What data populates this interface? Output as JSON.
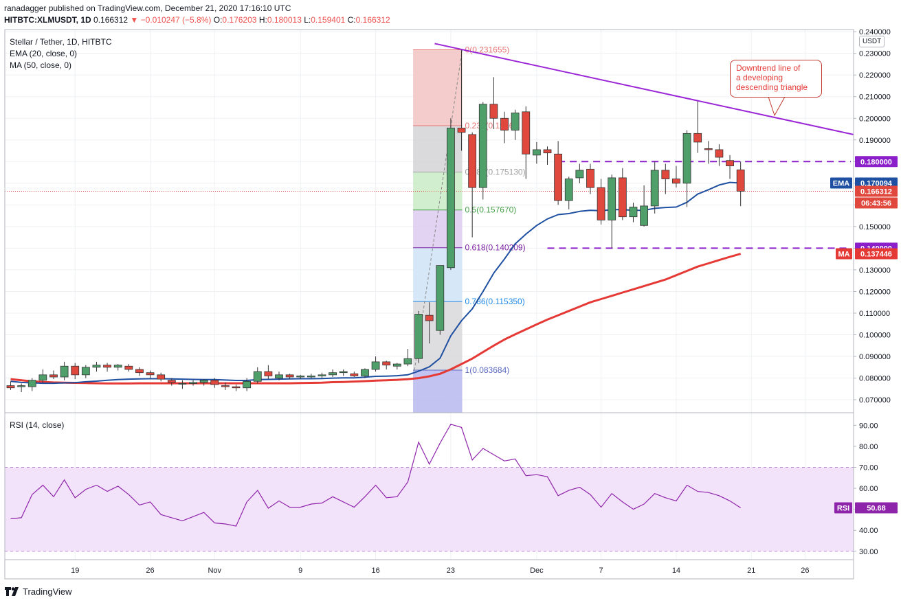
{
  "header": {
    "line1": "ranadagger published on TradingView.com, December 21, 2020 17:16:10 UTC",
    "symbol": "HITBTC:XLMUSDT, 1D",
    "last": "0.166312",
    "change": "▼ −0.010247 (−5.8%)",
    "o_label": "O:",
    "o_value": "0.176203",
    "h_label": "H:",
    "h_value": "0.180013",
    "l_label": "L:",
    "l_value": "0.159401",
    "c_label": "C:",
    "c_value": "0.166312"
  },
  "legend": {
    "title": "Stellar / Tether, 1D, HITBTC",
    "ema": "EMA (20, close, 0)",
    "ma": "MA (50, close, 0)",
    "rsi": "RSI (14, close)"
  },
  "annotation": {
    "line1": "Downtrend line of",
    "line2": "a developing",
    "line3": "descending triangle"
  },
  "currency_badge": "USDT",
  "footer": {
    "brand": "TradingView"
  },
  "colors": {
    "up": "#4f9f6b",
    "down": "#e0483e",
    "ema": "#1e4fa0",
    "ma": "#e53935",
    "rsi": "#8e24aa",
    "trend": "#9c27d6",
    "level": "#8b1fc9"
  },
  "chart_data": {
    "type": "candlestick",
    "price_axis": {
      "ylim": [
        0.064,
        0.241
      ],
      "ticks": [
        "0.240000",
        "0.230000",
        "0.220000",
        "0.210000",
        "0.200000",
        "0.190000",
        "0.180000",
        "0.170000",
        "0.160000",
        "0.150000",
        "0.140000",
        "0.130000",
        "0.120000",
        "0.110000",
        "0.100000",
        "0.090000",
        "0.080000",
        "0.070000"
      ]
    },
    "x_axis": {
      "labels": [
        {
          "text": "19",
          "index": 6
        },
        {
          "text": "26",
          "index": 13
        },
        {
          "text": "Nov",
          "index": 19
        },
        {
          "text": "9",
          "index": 27
        },
        {
          "text": "16",
          "index": 34
        },
        {
          "text": "23",
          "index": 41
        },
        {
          "text": "Dec",
          "index": 49
        },
        {
          "text": "7",
          "index": 55
        },
        {
          "text": "14",
          "index": 62
        },
        {
          "text": "21",
          "index": 69
        },
        {
          "text": "26",
          "index": 74
        }
      ]
    },
    "candles": [
      {
        "o": 0.0765,
        "h": 0.0785,
        "l": 0.0745,
        "c": 0.0755
      },
      {
        "o": 0.076,
        "h": 0.0775,
        "l": 0.0735,
        "c": 0.0765
      },
      {
        "o": 0.076,
        "h": 0.08,
        "l": 0.074,
        "c": 0.079
      },
      {
        "o": 0.079,
        "h": 0.084,
        "l": 0.078,
        "c": 0.0815
      },
      {
        "o": 0.0815,
        "h": 0.0835,
        "l": 0.0795,
        "c": 0.0805
      },
      {
        "o": 0.0805,
        "h": 0.0875,
        "l": 0.079,
        "c": 0.0855
      },
      {
        "o": 0.0855,
        "h": 0.087,
        "l": 0.0795,
        "c": 0.0815
      },
      {
        "o": 0.0815,
        "h": 0.086,
        "l": 0.08,
        "c": 0.085
      },
      {
        "o": 0.085,
        "h": 0.0875,
        "l": 0.083,
        "c": 0.086
      },
      {
        "o": 0.086,
        "h": 0.087,
        "l": 0.083,
        "c": 0.085
      },
      {
        "o": 0.085,
        "h": 0.0865,
        "l": 0.0835,
        "c": 0.086
      },
      {
        "o": 0.0855,
        "h": 0.0865,
        "l": 0.083,
        "c": 0.084
      },
      {
        "o": 0.084,
        "h": 0.085,
        "l": 0.081,
        "c": 0.0825
      },
      {
        "o": 0.0825,
        "h": 0.0835,
        "l": 0.08,
        "c": 0.0815
      },
      {
        "o": 0.0815,
        "h": 0.0825,
        "l": 0.0785,
        "c": 0.0795
      },
      {
        "o": 0.079,
        "h": 0.08,
        "l": 0.0765,
        "c": 0.078
      },
      {
        "o": 0.0775,
        "h": 0.079,
        "l": 0.075,
        "c": 0.0775
      },
      {
        "o": 0.0775,
        "h": 0.079,
        "l": 0.0765,
        "c": 0.078
      },
      {
        "o": 0.078,
        "h": 0.0795,
        "l": 0.0765,
        "c": 0.079
      },
      {
        "o": 0.079,
        "h": 0.08,
        "l": 0.0755,
        "c": 0.077
      },
      {
        "o": 0.0765,
        "h": 0.078,
        "l": 0.0745,
        "c": 0.076
      },
      {
        "o": 0.076,
        "h": 0.077,
        "l": 0.074,
        "c": 0.0755
      },
      {
        "o": 0.0755,
        "h": 0.08,
        "l": 0.074,
        "c": 0.0785
      },
      {
        "o": 0.0785,
        "h": 0.085,
        "l": 0.0775,
        "c": 0.083
      },
      {
        "o": 0.083,
        "h": 0.086,
        "l": 0.0795,
        "c": 0.081
      },
      {
        "o": 0.08,
        "h": 0.083,
        "l": 0.079,
        "c": 0.0815
      },
      {
        "o": 0.0815,
        "h": 0.082,
        "l": 0.0795,
        "c": 0.0805
      },
      {
        "o": 0.0805,
        "h": 0.0815,
        "l": 0.0795,
        "c": 0.081
      },
      {
        "o": 0.0805,
        "h": 0.082,
        "l": 0.08,
        "c": 0.081
      },
      {
        "o": 0.081,
        "h": 0.0825,
        "l": 0.08,
        "c": 0.0815
      },
      {
        "o": 0.0815,
        "h": 0.084,
        "l": 0.0805,
        "c": 0.0825
      },
      {
        "o": 0.0825,
        "h": 0.084,
        "l": 0.081,
        "c": 0.083
      },
      {
        "o": 0.082,
        "h": 0.083,
        "l": 0.0805,
        "c": 0.081
      },
      {
        "o": 0.081,
        "h": 0.0845,
        "l": 0.08,
        "c": 0.084
      },
      {
        "o": 0.084,
        "h": 0.09,
        "l": 0.083,
        "c": 0.0875
      },
      {
        "o": 0.0875,
        "h": 0.088,
        "l": 0.084,
        "c": 0.086
      },
      {
        "o": 0.0855,
        "h": 0.087,
        "l": 0.084,
        "c": 0.0865
      },
      {
        "o": 0.0865,
        "h": 0.0935,
        "l": 0.0855,
        "c": 0.089
      },
      {
        "o": 0.089,
        "h": 0.111,
        "l": 0.087,
        "c": 0.1095
      },
      {
        "o": 0.109,
        "h": 0.115,
        "l": 0.096,
        "c": 0.1065
      },
      {
        "o": 0.102,
        "h": 0.132,
        "l": 0.1,
        "c": 0.132
      },
      {
        "o": 0.131,
        "h": 0.2,
        "l": 0.13,
        "c": 0.1955
      },
      {
        "o": 0.1955,
        "h": 0.2316,
        "l": 0.185,
        "c": 0.1935
      },
      {
        "o": 0.1925,
        "h": 0.1935,
        "l": 0.145,
        "c": 0.168
      },
      {
        "o": 0.168,
        "h": 0.2075,
        "l": 0.1625,
        "c": 0.2065
      },
      {
        "o": 0.2065,
        "h": 0.219,
        "l": 0.195,
        "c": 0.2
      },
      {
        "o": 0.2,
        "h": 0.203,
        "l": 0.1885,
        "c": 0.1945
      },
      {
        "o": 0.1945,
        "h": 0.204,
        "l": 0.19,
        "c": 0.2025
      },
      {
        "o": 0.203,
        "h": 0.2055,
        "l": 0.172,
        "c": 0.1835
      },
      {
        "o": 0.183,
        "h": 0.189,
        "l": 0.179,
        "c": 0.1855
      },
      {
        "o": 0.1855,
        "h": 0.187,
        "l": 0.1785,
        "c": 0.184
      },
      {
        "o": 0.1835,
        "h": 0.1895,
        "l": 0.16,
        "c": 0.162
      },
      {
        "o": 0.162,
        "h": 0.173,
        "l": 0.158,
        "c": 0.172
      },
      {
        "o": 0.1725,
        "h": 0.179,
        "l": 0.17,
        "c": 0.176
      },
      {
        "o": 0.1765,
        "h": 0.179,
        "l": 0.165,
        "c": 0.168
      },
      {
        "o": 0.168,
        "h": 0.172,
        "l": 0.151,
        "c": 0.153
      },
      {
        "o": 0.153,
        "h": 0.174,
        "l": 0.14,
        "c": 0.1725
      },
      {
        "o": 0.1725,
        "h": 0.177,
        "l": 0.153,
        "c": 0.1545
      },
      {
        "o": 0.1545,
        "h": 0.161,
        "l": 0.152,
        "c": 0.159
      },
      {
        "o": 0.1505,
        "h": 0.169,
        "l": 0.15,
        "c": 0.1595
      },
      {
        "o": 0.1595,
        "h": 0.18,
        "l": 0.156,
        "c": 0.176
      },
      {
        "o": 0.176,
        "h": 0.179,
        "l": 0.165,
        "c": 0.172
      },
      {
        "o": 0.172,
        "h": 0.178,
        "l": 0.168,
        "c": 0.17
      },
      {
        "o": 0.17,
        "h": 0.1945,
        "l": 0.159,
        "c": 0.193
      },
      {
        "o": 0.193,
        "h": 0.208,
        "l": 0.184,
        "c": 0.189
      },
      {
        "o": 0.186,
        "h": 0.1895,
        "l": 0.179,
        "c": 0.1855
      },
      {
        "o": 0.1855,
        "h": 0.188,
        "l": 0.178,
        "c": 0.182
      },
      {
        "o": 0.1805,
        "h": 0.183,
        "l": 0.172,
        "c": 0.178
      },
      {
        "o": 0.1762,
        "h": 0.18,
        "l": 0.1594,
        "c": 0.1663
      }
    ],
    "ema20": [
      0.0785,
      0.078,
      0.0778,
      0.0776,
      0.0776,
      0.0778,
      0.0779,
      0.0783,
      0.0786,
      0.079,
      0.0793,
      0.0795,
      0.0796,
      0.0797,
      0.0797,
      0.0796,
      0.0795,
      0.0794,
      0.0793,
      0.0793,
      0.0791,
      0.0789,
      0.0789,
      0.0793,
      0.0794,
      0.0795,
      0.0796,
      0.0797,
      0.0797,
      0.0798,
      0.08,
      0.0801,
      0.0801,
      0.0804,
      0.0808,
      0.0809,
      0.0811,
      0.0815,
      0.0832,
      0.0852,
      0.0892,
      0.0995,
      0.1065,
      0.112,
      0.12,
      0.1285,
      0.135,
      0.142,
      0.1465,
      0.1505,
      0.1535,
      0.1555,
      0.156,
      0.157,
      0.1575,
      0.1573,
      0.1578,
      0.1578,
      0.1575,
      0.1575,
      0.1584,
      0.1588,
      0.159,
      0.1612,
      0.165,
      0.167,
      0.1692,
      0.1704,
      0.1701
    ],
    "ma50": [
      0.0795,
      0.079,
      0.0785,
      0.0782,
      0.078,
      0.0779,
      0.0778,
      0.0777,
      0.0776,
      0.0775,
      0.0775,
      0.0775,
      0.0776,
      0.0776,
      0.0776,
      0.0776,
      0.0776,
      0.0776,
      0.0776,
      0.0776,
      0.0776,
      0.0776,
      0.0776,
      0.0776,
      0.0776,
      0.0776,
      0.0776,
      0.0777,
      0.0778,
      0.0779,
      0.0781,
      0.0782,
      0.0784,
      0.0786,
      0.0788,
      0.079,
      0.0792,
      0.0795,
      0.08,
      0.0808,
      0.082,
      0.084,
      0.0865,
      0.089,
      0.092,
      0.095,
      0.0978,
      0.1002,
      0.1025,
      0.1048,
      0.107,
      0.109,
      0.111,
      0.113,
      0.115,
      0.1165,
      0.118,
      0.1195,
      0.121,
      0.1225,
      0.124,
      0.1255,
      0.1275,
      0.1295,
      0.1315,
      0.133,
      0.1345,
      0.136,
      0.1374
    ],
    "rsi14": [
      45.5,
      46.0,
      57.0,
      61.5,
      56.0,
      64.0,
      55.5,
      59.5,
      61.5,
      58.5,
      61.0,
      57.0,
      52.0,
      53.5,
      47.5,
      46.0,
      44.5,
      46.5,
      48.5,
      43.5,
      43.0,
      42.0,
      53.5,
      59.0,
      50.5,
      54.0,
      51.0,
      51.0,
      52.5,
      53.0,
      56.0,
      53.5,
      51.0,
      56.0,
      61.5,
      55.5,
      56.0,
      63.0,
      82.0,
      71.5,
      81.5,
      90.5,
      89.0,
      73.5,
      79.0,
      76.0,
      73.0,
      74.0,
      66.0,
      66.5,
      65.5,
      56.5,
      59.0,
      60.5,
      57.0,
      51.0,
      57.5,
      53.5,
      50.0,
      52.5,
      57.5,
      55.5,
      54.0,
      61.5,
      58.5,
      58.0,
      56.5,
      54.0,
      50.68
    ],
    "rsi_axis": {
      "ylim": [
        26,
        96
      ],
      "ticks": [
        "90.00",
        "80.00",
        "70.00",
        "60.00",
        "50.00",
        "40.00",
        "30.00"
      ],
      "band": [
        30,
        70
      ]
    },
    "fibonacci": {
      "start_index": 38,
      "end_index": 42,
      "levels": [
        {
          "ratio": 0,
          "price": 0.231655,
          "label": "0(0.231655)",
          "color": "#e57373",
          "fill": "#f4c7c7"
        },
        {
          "ratio": 0.236,
          "price": 0.1966,
          "label": "0.236(0.1966)",
          "color": "#e57373",
          "fill": "#d3d3d6"
        },
        {
          "ratio": 0.382,
          "price": 0.17513,
          "label": "0.382(0.175130)",
          "color": "#9e9e9e",
          "fill": "#c9ecc7"
        },
        {
          "ratio": 0.5,
          "price": 0.15767,
          "label": "0.5(0.157670)",
          "color": "#43a047",
          "fill": "#dccbee"
        },
        {
          "ratio": 0.618,
          "price": 0.140209,
          "label": "0.618(0.140209)",
          "color": "#7b1fa2",
          "fill": "#cfe4f7"
        },
        {
          "ratio": 0.786,
          "price": 0.11535,
          "label": "0.786(0.115350)",
          "color": "#1e88e5",
          "fill": "#d8d8db"
        },
        {
          "ratio": 1,
          "price": 0.083684,
          "label": "1(0.083684)",
          "color": "#5c6bc0",
          "fill": "#b9b9f0"
        }
      ]
    },
    "trendline": {
      "from": {
        "index": 39.5,
        "price": 0.2345
      },
      "to": {
        "index": 78.5,
        "price": 0.1925
      }
    },
    "levels": [
      {
        "price": 0.18,
        "label": "0.180000",
        "from_index": 51
      },
      {
        "price": 0.14,
        "label": "0.140000",
        "from_index": 50
      }
    ],
    "price_tags": {
      "ema": {
        "name": "EMA",
        "value": "0.170094"
      },
      "last": {
        "value": "0.166312",
        "countdown": "06:43:56"
      },
      "ma": {
        "name": "MA",
        "value": "0.137446"
      },
      "rsi": {
        "name": "RSI",
        "value": "50.68"
      }
    }
  }
}
